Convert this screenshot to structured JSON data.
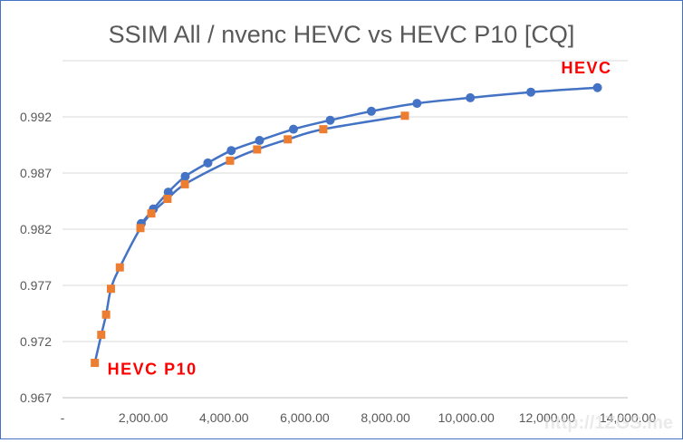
{
  "chart_data": {
    "type": "line",
    "title": "SSIM All / nvenc HEVC vs HEVC P10 [CQ]",
    "xlabel": "",
    "ylabel": "",
    "xlim": [
      0,
      14000
    ],
    "ylim": [
      0.967,
      0.997
    ],
    "x_ticks": [
      0,
      2000,
      4000,
      6000,
      8000,
      10000,
      12000,
      14000
    ],
    "x_tick_labels": [
      "-",
      "2,000.00",
      "4,000.00",
      "6,000.00",
      "8,000.00",
      "10,000.00",
      "12,000.00",
      "14,000.00"
    ],
    "y_ticks": [
      0.967,
      0.972,
      0.977,
      0.982,
      0.987,
      0.992
    ],
    "y_tick_labels": [
      "0.967",
      "0.972",
      "0.977",
      "0.982",
      "0.987",
      "0.992"
    ],
    "grid": "horizontal",
    "legend": "none",
    "series": [
      {
        "name": "HEVC",
        "color": "#4472c4",
        "marker": "circle",
        "label_color": "#ff0000",
        "points": [
          [
            1950,
            0.9825
          ],
          [
            2250,
            0.9838
          ],
          [
            2620,
            0.9853
          ],
          [
            3040,
            0.9867
          ],
          [
            3600,
            0.9879
          ],
          [
            4180,
            0.989
          ],
          [
            4880,
            0.9899
          ],
          [
            5720,
            0.9909
          ],
          [
            6630,
            0.9917
          ],
          [
            7650,
            0.9925
          ],
          [
            8780,
            0.9932
          ],
          [
            10100,
            0.9937
          ],
          [
            11600,
            0.9942
          ],
          [
            13250,
            0.9946
          ]
        ]
      },
      {
        "name": "HEVC P10",
        "color": "#4472c4",
        "marker": "square",
        "marker_color": "#ed7d31",
        "label_color": "#ff0000",
        "points": [
          [
            800,
            0.9701
          ],
          [
            960,
            0.9726
          ],
          [
            1080,
            0.9744
          ],
          [
            1200,
            0.9767
          ],
          [
            1420,
            0.9786
          ],
          [
            1930,
            0.9821
          ],
          [
            2200,
            0.9834
          ],
          [
            2600,
            0.9847
          ],
          [
            3030,
            0.986
          ],
          [
            4150,
            0.9881
          ],
          [
            4820,
            0.9891
          ],
          [
            5580,
            0.99
          ],
          [
            6460,
            0.9909
          ],
          [
            8480,
            0.9921
          ]
        ]
      }
    ]
  },
  "watermark": "http://1ZGS.me"
}
